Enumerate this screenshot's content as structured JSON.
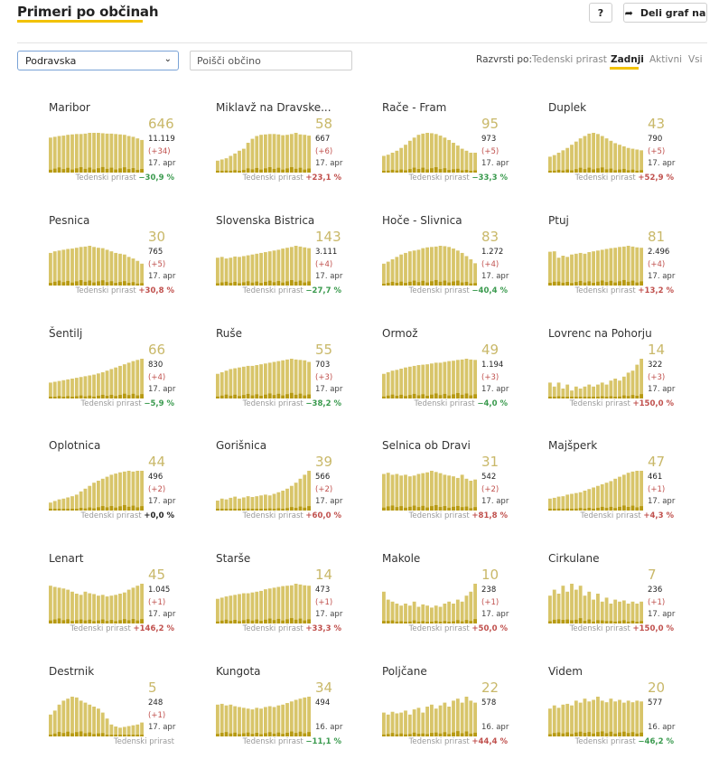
{
  "header": {
    "title": "Primeri po občinah",
    "help_label": "?",
    "share_icon": "share-arrow-icon",
    "share_label": "Deli graf na"
  },
  "filters": {
    "region_value": "Podravska",
    "search_placeholder": "Poišči občino",
    "sort_label": "Razvrsti po:",
    "sort_options": [
      "Tedenski prirast",
      "Zadnji",
      "Aktivni",
      "Vsi"
    ],
    "sort_active": "Zadnji"
  },
  "footer_label": "Tedenski prirast",
  "colors": {
    "bar_light": "#d8c56a",
    "bar_dark": "#b79a12",
    "accent": "#f2c200",
    "negative": "#3a9a4e",
    "positive": "#c0504d"
  },
  "cards": [
    {
      "name": "Maribor",
      "active": "646",
      "total": "11.119",
      "change": "(+34)",
      "date": "17. apr",
      "weekly": "−30,9 %",
      "trend": "neg",
      "shape": [
        0.88,
        0.9,
        0.92,
        0.93,
        0.95,
        0.96,
        0.97,
        0.97,
        0.98,
        1,
        1,
        1,
        0.99,
        0.98,
        0.98,
        0.97,
        0.96,
        0.95,
        0.92,
        0.9,
        0.86,
        0.82
      ]
    },
    {
      "name": "Miklavž na Dravske...",
      "active": "58",
      "total": "667",
      "change": "(+6)",
      "date": "17. apr",
      "weekly": "+23,1 %",
      "trend": "pos",
      "shape": [
        0.3,
        0.33,
        0.36,
        0.42,
        0.48,
        0.55,
        0.6,
        0.75,
        0.85,
        0.92,
        0.95,
        0.96,
        0.97,
        0.97,
        0.96,
        0.94,
        0.95,
        0.97,
        1,
        0.96,
        0.95,
        0.93
      ]
    },
    {
      "name": "Rače - Fram",
      "active": "95",
      "total": "973",
      "change": "(+5)",
      "date": "17. apr",
      "weekly": "−33,3 %",
      "trend": "neg",
      "shape": [
        0.42,
        0.45,
        0.5,
        0.55,
        0.62,
        0.7,
        0.8,
        0.88,
        0.95,
        0.98,
        1,
        0.99,
        0.97,
        0.93,
        0.88,
        0.82,
        0.75,
        0.68,
        0.6,
        0.55,
        0.5,
        0.5
      ]
    },
    {
      "name": "Duplek",
      "active": "43",
      "total": "790",
      "change": "(+5)",
      "date": "17. apr",
      "weekly": "+52,9 %",
      "trend": "pos",
      "shape": [
        0.4,
        0.44,
        0.5,
        0.56,
        0.62,
        0.7,
        0.78,
        0.86,
        0.92,
        0.98,
        1,
        0.97,
        0.92,
        0.86,
        0.8,
        0.74,
        0.7,
        0.66,
        0.62,
        0.6,
        0.58,
        0.56
      ]
    },
    {
      "name": "Pesnica",
      "active": "30",
      "total": "765",
      "change": "(+5)",
      "date": "17. apr",
      "weekly": "+30,8 %",
      "trend": "pos",
      "shape": [
        0.82,
        0.86,
        0.88,
        0.9,
        0.92,
        0.93,
        0.95,
        0.97,
        0.98,
        1,
        0.97,
        0.95,
        0.94,
        0.9,
        0.86,
        0.82,
        0.8,
        0.78,
        0.72,
        0.68,
        0.62,
        0.55
      ]
    },
    {
      "name": "Slovenska Bistrica",
      "active": "143",
      "total": "3.111",
      "change": "(+4)",
      "date": "17. apr",
      "weekly": "−27,7 %",
      "trend": "neg",
      "shape": [
        0.7,
        0.72,
        0.68,
        0.7,
        0.73,
        0.72,
        0.74,
        0.76,
        0.78,
        0.8,
        0.82,
        0.84,
        0.86,
        0.88,
        0.9,
        0.93,
        0.95,
        0.97,
        1,
        0.98,
        0.96,
        0.94
      ]
    },
    {
      "name": "Hoče - Slivnica",
      "active": "83",
      "total": "1.272",
      "change": "(+4)",
      "date": "17. apr",
      "weekly": "−40,4 %",
      "trend": "neg",
      "shape": [
        0.55,
        0.6,
        0.66,
        0.72,
        0.78,
        0.82,
        0.86,
        0.88,
        0.9,
        0.94,
        0.96,
        0.97,
        0.98,
        1,
        0.99,
        0.97,
        0.93,
        0.88,
        0.82,
        0.74,
        0.66,
        0.56
      ]
    },
    {
      "name": "Ptuj",
      "active": "81",
      "total": "2.496",
      "change": "(+4)",
      "date": "17. apr",
      "weekly": "+13,2 %",
      "trend": "pos",
      "shape": [
        0.85,
        0.86,
        0.7,
        0.75,
        0.72,
        0.78,
        0.8,
        0.82,
        0.8,
        0.84,
        0.86,
        0.88,
        0.9,
        0.92,
        0.94,
        0.95,
        0.97,
        0.98,
        1,
        0.98,
        0.96,
        0.95
      ]
    },
    {
      "name": "Šentilj",
      "active": "66",
      "total": "830",
      "change": "(+4)",
      "date": "17. apr",
      "weekly": "−5,9 %",
      "trend": "neg",
      "shape": [
        0.4,
        0.42,
        0.44,
        0.46,
        0.48,
        0.5,
        0.52,
        0.54,
        0.56,
        0.58,
        0.6,
        0.63,
        0.66,
        0.7,
        0.74,
        0.78,
        0.82,
        0.86,
        0.9,
        0.94,
        0.97,
        1
      ]
    },
    {
      "name": "Ruše",
      "active": "55",
      "total": "703",
      "change": "(+3)",
      "date": "17. apr",
      "weekly": "−38,2 %",
      "trend": "neg",
      "shape": [
        0.62,
        0.66,
        0.7,
        0.74,
        0.76,
        0.78,
        0.8,
        0.82,
        0.82,
        0.84,
        0.86,
        0.88,
        0.9,
        0.92,
        0.94,
        0.96,
        0.98,
        1,
        0.98,
        0.97,
        0.96,
        0.92
      ]
    },
    {
      "name": "Ormož",
      "active": "49",
      "total": "1.194",
      "change": "(+3)",
      "date": "17. apr",
      "weekly": "−4,0 %",
      "trend": "neg",
      "shape": [
        0.62,
        0.66,
        0.7,
        0.72,
        0.75,
        0.78,
        0.8,
        0.82,
        0.84,
        0.85,
        0.86,
        0.88,
        0.9,
        0.9,
        0.92,
        0.94,
        0.95,
        0.97,
        0.98,
        1,
        0.98,
        0.97
      ]
    },
    {
      "name": "Lovrenc na Pohorju",
      "active": "14",
      "total": "322",
      "change": "(+3)",
      "date": "17. apr",
      "weekly": "+150,0 %",
      "trend": "pos",
      "shape": [
        0.4,
        0.3,
        0.4,
        0.25,
        0.35,
        0.2,
        0.3,
        0.25,
        0.3,
        0.35,
        0.3,
        0.35,
        0.4,
        0.35,
        0.45,
        0.5,
        0.45,
        0.55,
        0.65,
        0.7,
        0.85,
        1
      ]
    },
    {
      "name": "Oplotnica",
      "active": "44",
      "total": "496",
      "change": "(+2)",
      "date": "17. apr",
      "weekly": "+0,0 %",
      "trend": "zero",
      "shape": [
        0.2,
        0.24,
        0.28,
        0.3,
        0.33,
        0.36,
        0.4,
        0.48,
        0.55,
        0.62,
        0.7,
        0.75,
        0.8,
        0.85,
        0.9,
        0.93,
        0.96,
        0.98,
        1,
        0.98,
        1,
        1
      ]
    },
    {
      "name": "Gorišnica",
      "active": "39",
      "total": "566",
      "change": "(+2)",
      "date": "17. apr",
      "weekly": "+60,0 %",
      "trend": "pos",
      "shape": [
        0.25,
        0.3,
        0.28,
        0.32,
        0.35,
        0.3,
        0.33,
        0.36,
        0.34,
        0.36,
        0.38,
        0.4,
        0.38,
        0.42,
        0.46,
        0.5,
        0.55,
        0.62,
        0.7,
        0.8,
        0.9,
        1
      ]
    },
    {
      "name": "Selnica ob Dravi",
      "active": "31",
      "total": "542",
      "change": "(+2)",
      "date": "17. apr",
      "weekly": "+81,8 %",
      "trend": "pos",
      "shape": [
        0.92,
        0.95,
        0.9,
        0.92,
        0.88,
        0.9,
        0.86,
        0.88,
        0.92,
        0.94,
        0.96,
        1,
        0.97,
        0.94,
        0.9,
        0.88,
        0.86,
        0.82,
        0.9,
        0.8,
        0.75,
        0.78
      ]
    },
    {
      "name": "Majšperk",
      "active": "47",
      "total": "461",
      "change": "(+1)",
      "date": "17. apr",
      "weekly": "+4,3 %",
      "trend": "pos",
      "shape": [
        0.3,
        0.32,
        0.35,
        0.36,
        0.4,
        0.42,
        0.44,
        0.46,
        0.5,
        0.54,
        0.58,
        0.62,
        0.66,
        0.7,
        0.74,
        0.8,
        0.85,
        0.9,
        0.95,
        0.98,
        1,
        1
      ]
    },
    {
      "name": "Lenart",
      "active": "45",
      "total": "1.045",
      "change": "(+1)",
      "date": "17. apr",
      "weekly": "+146,2 %",
      "trend": "pos",
      "shape": [
        0.95,
        0.92,
        0.9,
        0.88,
        0.85,
        0.8,
        0.75,
        0.72,
        0.8,
        0.76,
        0.74,
        0.7,
        0.72,
        0.68,
        0.7,
        0.72,
        0.75,
        0.78,
        0.85,
        0.9,
        0.95,
        1
      ]
    },
    {
      "name": "Starše",
      "active": "14",
      "total": "473",
      "change": "(+1)",
      "date": "17. apr",
      "weekly": "+33,3 %",
      "trend": "pos",
      "shape": [
        0.62,
        0.65,
        0.68,
        0.7,
        0.72,
        0.74,
        0.76,
        0.76,
        0.78,
        0.8,
        0.82,
        0.86,
        0.88,
        0.9,
        0.92,
        0.94,
        0.95,
        0.96,
        1,
        0.98,
        0.96,
        0.95
      ]
    },
    {
      "name": "Makole",
      "active": "10",
      "total": "238",
      "change": "(+1)",
      "date": "17. apr",
      "weekly": "+50,0 %",
      "trend": "pos",
      "shape": [
        0.8,
        0.6,
        0.55,
        0.5,
        0.45,
        0.5,
        0.45,
        0.55,
        0.42,
        0.48,
        0.45,
        0.4,
        0.45,
        0.42,
        0.5,
        0.55,
        0.5,
        0.6,
        0.55,
        0.7,
        0.8,
        1
      ]
    },
    {
      "name": "Cirkulane",
      "active": "7",
      "total": "236",
      "change": "(+1)",
      "date": "17. apr",
      "weekly": "+150,0 %",
      "trend": "pos",
      "shape": [
        0.7,
        0.85,
        0.75,
        0.95,
        0.8,
        1,
        0.85,
        0.95,
        0.7,
        0.8,
        0.6,
        0.75,
        0.55,
        0.65,
        0.5,
        0.6,
        0.55,
        0.58,
        0.5,
        0.55,
        0.5,
        0.55
      ]
    },
    {
      "name": "Destrnik",
      "active": "5",
      "total": "248",
      "change": "(+1)",
      "date": "17. apr",
      "weekly": "",
      "trend": "pos",
      "shape": [
        0.55,
        0.65,
        0.8,
        0.9,
        0.95,
        1,
        0.98,
        0.9,
        0.85,
        0.8,
        0.75,
        0.7,
        0.6,
        0.45,
        0.3,
        0.25,
        0.22,
        0.24,
        0.26,
        0.28,
        0.3,
        0.35
      ]
    },
    {
      "name": "Kungota",
      "active": "34",
      "total": "494",
      "change": "",
      "date": "16. apr",
      "weekly": "−11,1 %",
      "trend": "neg",
      "shape": [
        0.8,
        0.82,
        0.78,
        0.8,
        0.76,
        0.74,
        0.72,
        0.7,
        0.68,
        0.72,
        0.7,
        0.74,
        0.76,
        0.74,
        0.78,
        0.8,
        0.84,
        0.88,
        0.92,
        0.95,
        0.98,
        1
      ]
    },
    {
      "name": "Poljčane",
      "active": "22",
      "total": "578",
      "change": "",
      "date": "16. apr",
      "weekly": "+44,4 %",
      "trend": "pos",
      "shape": [
        0.6,
        0.55,
        0.62,
        0.58,
        0.6,
        0.65,
        0.55,
        0.68,
        0.72,
        0.6,
        0.75,
        0.8,
        0.7,
        0.78,
        0.85,
        0.75,
        0.9,
        0.95,
        0.85,
        1,
        0.9,
        0.85
      ]
    },
    {
      "name": "Videm",
      "active": "20",
      "total": "577",
      "change": "",
      "date": "16. apr",
      "weekly": "−46,2 %",
      "trend": "neg",
      "shape": [
        0.7,
        0.78,
        0.72,
        0.8,
        0.82,
        0.78,
        0.9,
        0.85,
        0.95,
        0.88,
        0.92,
        1,
        0.9,
        0.86,
        0.95,
        0.88,
        0.92,
        0.85,
        0.9,
        0.86,
        0.9,
        0.88
      ]
    }
  ]
}
